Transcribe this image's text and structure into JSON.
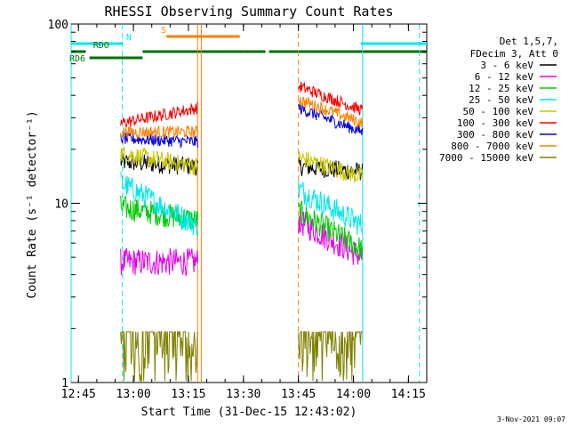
{
  "chart_data": {
    "type": "line",
    "title": "RHESSI Observing Summary Count Rates",
    "xlabel": "Start Time (31-Dec-15 12:43:02)",
    "ylabel": "Count Rate (s⁻¹ detector⁻¹)",
    "yscale": "log",
    "ylim": [
      1,
      100
    ],
    "xlim_minutes_after_1243": [
      0,
      97
    ],
    "x_tick_labels": [
      "12:45",
      "13:00",
      "13:15",
      "13:30",
      "13:45",
      "14:00",
      "14:15"
    ],
    "x_tick_minutes_after_1243": [
      2,
      17,
      32,
      47,
      62,
      77,
      92
    ],
    "y_tick_labels": [
      "1",
      "10",
      "100"
    ],
    "y_tick_values": [
      1,
      10,
      100
    ],
    "legend_header": [
      "Det 1,5,7,",
      "FDecim 3, Att 0"
    ],
    "legend_position": "right",
    "timestamp": "3-Nov-2021 09:07",
    "segments": [
      {
        "start": 13.5,
        "end": 34.5
      },
      {
        "start": 62,
        "end": 79.5
      }
    ],
    "series": [
      {
        "name": "3 - 6 keV",
        "color": "#000000",
        "levels": [
          17,
          16,
          16,
          15
        ],
        "jitter": 0.12
      },
      {
        "name": "6 - 12 keV",
        "color": "#e800e8",
        "levels": [
          4.7,
          4.7,
          8,
          5
        ],
        "jitter": 0.18
      },
      {
        "name": "12 - 25 keV",
        "color": "#00cc00",
        "levels": [
          9.5,
          8,
          9,
          5.5
        ],
        "jitter": 0.16
      },
      {
        "name": "25 - 50 keV",
        "color": "#00e8e8",
        "levels": [
          13,
          7.5,
          12,
          7.5
        ],
        "jitter": 0.16
      },
      {
        "name": "50 - 100 keV",
        "color": "#c8c800",
        "levels": [
          19,
          16,
          18,
          14
        ],
        "jitter": 0.12
      },
      {
        "name": "100 - 300 keV",
        "color": "#ff0000",
        "levels": [
          28,
          34,
          45,
          33
        ],
        "jitter": 0.08
      },
      {
        "name": "300 - 800 keV",
        "color": "#0000e0",
        "levels": [
          23,
          22,
          34,
          25
        ],
        "jitter": 0.08
      },
      {
        "name": "800 - 7000 keV",
        "color": "#ff8000",
        "levels": [
          25,
          25,
          38,
          28
        ],
        "jitter": 0.08
      },
      {
        "name": "7000 - 15000 keV",
        "color": "#808000",
        "levels": [
          1.6,
          1.6,
          1.6,
          1.6
        ],
        "jitter": 0.25
      }
    ],
    "flags": [
      {
        "label": "N",
        "color": "#00e8e8",
        "level": "top",
        "intervals": [
          [
            0,
            14
          ]
        ],
        "label_at": 15
      },
      {
        "label": "",
        "color": "#00e8e8",
        "level": "top",
        "intervals": [
          [
            79,
            97
          ]
        ]
      },
      {
        "label": "S",
        "color": "#ff8000",
        "level": "mid",
        "intervals": [
          [
            26,
            46
          ]
        ],
        "label_at": 24.5
      },
      {
        "label": "RDO",
        "color": "#007000",
        "level": "rdo",
        "intervals": [
          [
            0,
            4
          ]
        ],
        "label_at": 6
      },
      {
        "label": "RD6",
        "color": "#007000",
        "level": "rd6",
        "intervals": [
          [
            19.5,
            47
          ],
          [
            47,
            53
          ],
          [
            54,
            97
          ]
        ],
        "label_at": 0
      },
      {
        "label": "",
        "color": "#007000",
        "level": "rd6b",
        "intervals": [
          [
            5,
            19.5
          ]
        ]
      }
    ],
    "vlines": [
      {
        "x": 0,
        "color": "#00e8e8",
        "dash": false
      },
      {
        "x": 14,
        "color": "#00e8e8",
        "dash": true
      },
      {
        "x": 34.5,
        "color": "#ff8000",
        "dash": false
      },
      {
        "x": 35.5,
        "color": "#ff8000",
        "dash": false
      },
      {
        "x": 62,
        "color": "#ff8000",
        "dash": true
      },
      {
        "x": 79.5,
        "color": "#00e8e8",
        "dash": false
      },
      {
        "x": 95,
        "color": "#00e8e8",
        "dash": true
      }
    ]
  }
}
